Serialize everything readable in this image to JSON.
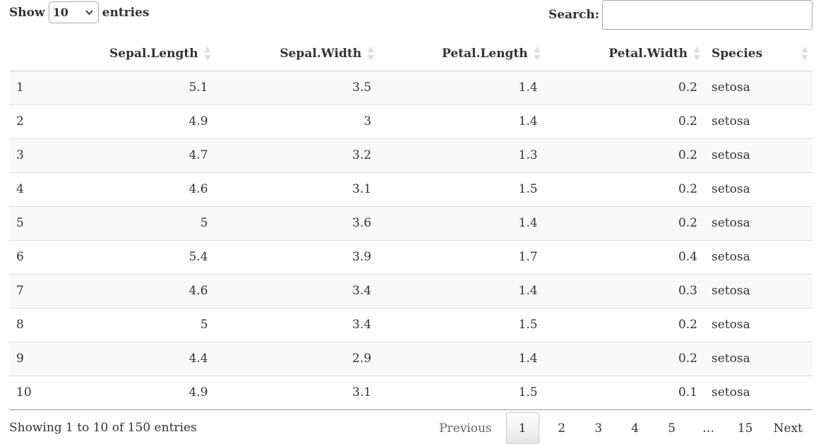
{
  "length_control": {
    "prefix": "Show",
    "selected": "10",
    "suffix": "entries"
  },
  "search": {
    "label": "Search:",
    "value": ""
  },
  "table": {
    "columns": [
      "",
      "Sepal.Length",
      "Sepal.Width",
      "Petal.Length",
      "Petal.Width",
      "Species"
    ],
    "rows": [
      [
        "1",
        "5.1",
        "3.5",
        "1.4",
        "0.2",
        "setosa"
      ],
      [
        "2",
        "4.9",
        "3",
        "1.4",
        "0.2",
        "setosa"
      ],
      [
        "3",
        "4.7",
        "3.2",
        "1.3",
        "0.2",
        "setosa"
      ],
      [
        "4",
        "4.6",
        "3.1",
        "1.5",
        "0.2",
        "setosa"
      ],
      [
        "5",
        "5",
        "3.6",
        "1.4",
        "0.2",
        "setosa"
      ],
      [
        "6",
        "5.4",
        "3.9",
        "1.7",
        "0.4",
        "setosa"
      ],
      [
        "7",
        "4.6",
        "3.4",
        "1.4",
        "0.3",
        "setosa"
      ],
      [
        "8",
        "5",
        "3.4",
        "1.5",
        "0.2",
        "setosa"
      ],
      [
        "9",
        "4.4",
        "2.9",
        "1.4",
        "0.2",
        "setosa"
      ],
      [
        "10",
        "4.9",
        "3.1",
        "1.5",
        "0.1",
        "setosa"
      ]
    ]
  },
  "info": "Showing 1 to 10 of 150 entries",
  "pagination": {
    "previous": "Previous",
    "pages": [
      "1",
      "2",
      "3",
      "4",
      "5",
      "…",
      "15"
    ],
    "current": "1",
    "next": "Next"
  },
  "colors": {
    "sort_icon": "#dddddd",
    "stripe": "#f9f9f9",
    "text": "#333333"
  },
  "icons": {
    "sort": "sort-both-icon",
    "select": "chevron-down-icon"
  }
}
